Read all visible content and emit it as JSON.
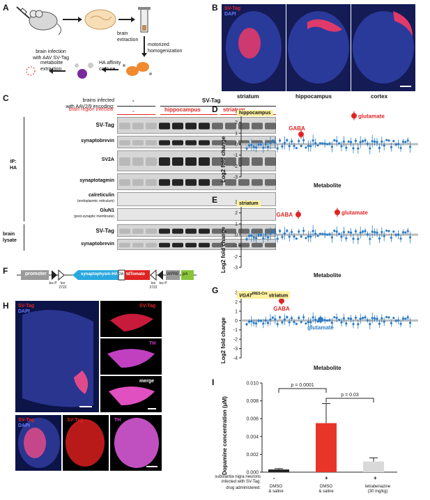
{
  "panel_labels": {
    "A": "A",
    "B": "B",
    "C": "C",
    "D": "D",
    "E": "E",
    "F": "F",
    "G": "G",
    "H": "H",
    "I": "I"
  },
  "panelA": {
    "brain_infection": "brain infection",
    "with_aav": "with AAV SV-Tag",
    "brain_extraction_1": "brain",
    "brain_extraction_2": "extraction",
    "motorized_1": "motorized",
    "motorized_2": "homogenization",
    "ha_affinity_1": "HA affinity",
    "ha_affinity_2": "capture",
    "metabolite_1": "metabolite",
    "metabolite_2": "extraction"
  },
  "panelB": {
    "legend_svtag": "SV-Tag",
    "legend_dapi": "DAPI",
    "striatum": "striatum",
    "hippocampus": "hippocampus",
    "cortex": "cortex"
  },
  "panelC": {
    "header1": "brains infected",
    "header2": "with AAV2/9 encoding:",
    "minus": "-",
    "svtag_col": "SV-Tag",
    "region_infected": "brain region infected:",
    "region_minus": "-",
    "hippocampus": "hippocampus",
    "striatum": "striatum",
    "ip_label_1": "IP:",
    "ip_label_2": "HA",
    "lysate_1": "brain",
    "lysate_2": "lysate",
    "rows": [
      "SV-Tag",
      "synaptobrevin",
      "SV2A",
      "synaptotagmin",
      "calreticulin",
      "GluN1",
      "SV-Tag",
      "synaptobrevin"
    ],
    "calreticulin_sub": "(endoplasmic reticulum)",
    "glun1_sub": "(post-synaptic membrane)"
  },
  "panelD": {
    "tag": "hippocampus",
    "gaba": "GABA",
    "glutamate": "glutamate",
    "xlabel": "Metabolite"
  },
  "panelE": {
    "tag": "striatum",
    "gaba": "GABA",
    "glutamate": "glutamate",
    "xlabel": "Metabolite"
  },
  "panelG": {
    "tag_main": "VGAT",
    "tag_sup": "IRES-Cre",
    "tag_suffix": "striatum",
    "gaba": "GABA",
    "glutamate": "glutamate",
    "xlabel": "Metabolite"
  },
  "ylabel_logfc": "Log2 fold change",
  "yticks_DE": [
    "3",
    "2",
    "1",
    "0",
    "-1",
    "-2",
    "-3"
  ],
  "yticks_G": [
    "3",
    "2",
    "1",
    "0",
    "-1",
    "-2",
    "-3",
    "-4"
  ],
  "panelF": {
    "promoter": "promoter",
    "synaptophysin": "synaptophysin-HA",
    "twoA": "2A",
    "tdtomato": "tdTomato",
    "wpre": "WPRE",
    "pa": "pA",
    "loxP": "lox P",
    "lox2722": "lox 2722"
  },
  "panelH": {
    "legend_svtag": "SV-Tag",
    "legend_dapi": "DAPI",
    "svtag": "SV-Tag",
    "th": "TH",
    "merge": "merge"
  },
  "panelI": {
    "ylabel": "Dopamine concentration (μM)",
    "yticks": [
      "0.010",
      "0.008",
      "0.006",
      "0.004",
      "0.002",
      "0.000"
    ],
    "p1": "p = 0.0001",
    "p2": "p = 0.03",
    "row1_label_1": "substantia nigra neurons",
    "row1_label_2": "infected with SV-Tag:",
    "row1": [
      "-",
      "+",
      "+"
    ],
    "row2_label": "drug administered:",
    "drug1_1": "DMSO",
    "drug1_2": "& saline",
    "drug2_1": "DMSO",
    "drug2_2": "& saline",
    "drug3_1": "tetrabenazine",
    "drug3_2": "(30 mg/kg)"
  },
  "colors": {
    "red": "#e02424",
    "blue": "#2a7cc7",
    "yellow": "#fdf0a0",
    "navy": "#1a2a7a",
    "magenta": "#d040d0"
  },
  "chart_data": [
    {
      "type": "scatter",
      "panel": "D",
      "ylabel": "Log2 fold change",
      "xlabel": "Metabolite",
      "ylim": [
        -3,
        3
      ],
      "highlighted": [
        {
          "name": "GABA",
          "y": 0.9
        },
        {
          "name": "glutamate",
          "y": 2.6
        }
      ]
    },
    {
      "type": "scatter",
      "panel": "E",
      "ylabel": "Log2 fold change",
      "xlabel": "Metabolite",
      "ylim": [
        -3,
        3
      ],
      "highlighted": [
        {
          "name": "GABA",
          "y": 1.85
        },
        {
          "name": "glutamate",
          "y": 2.05
        }
      ]
    },
    {
      "type": "scatter",
      "panel": "G",
      "ylabel": "Log2 fold change",
      "xlabel": "Metabolite",
      "ylim": [
        -4,
        3
      ],
      "highlighted": [
        {
          "name": "GABA",
          "y": 2.1
        },
        {
          "name": "glutamate",
          "y": 0.1
        }
      ]
    },
    {
      "type": "bar",
      "panel": "I",
      "ylabel": "Dopamine concentration (μM)",
      "ylim": [
        0,
        0.01
      ],
      "categories": [
        "-",
        "+",
        "+"
      ],
      "values": [
        0.0003,
        0.0055,
        0.0012
      ],
      "errors": [
        0.0001,
        0.0022,
        0.0004
      ],
      "colors": [
        "#222222",
        "#e8352a",
        "#d9d9d9"
      ]
    }
  ]
}
